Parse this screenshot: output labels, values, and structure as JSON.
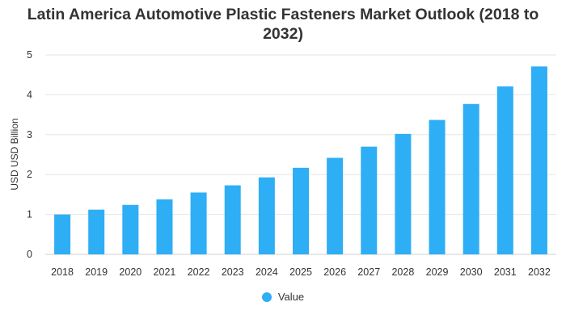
{
  "chart_data": {
    "type": "bar",
    "title": "Latin America Automotive Plastic Fasteners Market Outlook (2018 to 2032)",
    "xlabel": "",
    "ylabel": "USD USD Billion",
    "ylim": [
      0,
      5
    ],
    "yticks": [
      "0",
      "1",
      "2",
      "3",
      "4",
      "5"
    ],
    "grid": true,
    "legend_position": "bottom",
    "categories": [
      "2018",
      "2019",
      "2020",
      "2021",
      "2022",
      "2023",
      "2024",
      "2025",
      "2026",
      "2027",
      "2028",
      "2029",
      "2030",
      "2031",
      "2032"
    ],
    "series": [
      {
        "name": "Value",
        "color": "#2eaef5",
        "values": [
          1.0,
          1.12,
          1.24,
          1.38,
          1.55,
          1.73,
          1.93,
          2.17,
          2.42,
          2.7,
          3.02,
          3.37,
          3.77,
          4.21,
          4.71
        ]
      }
    ]
  }
}
